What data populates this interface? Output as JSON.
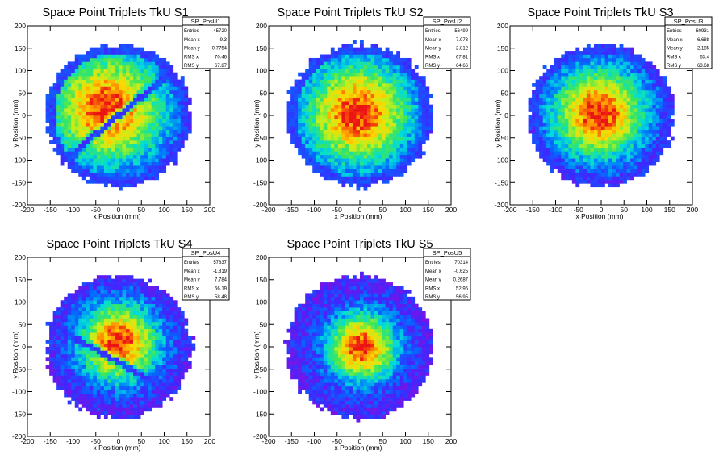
{
  "chart_data": [
    {
      "type": "heatmap",
      "title": "Space Point Triplets TkU S1",
      "xlabel": "x Position (mm)",
      "ylabel": "y Position (mm)",
      "xlim": [
        -200,
        200
      ],
      "ylim": [
        -200,
        200
      ],
      "xticks": [
        -200,
        -150,
        -100,
        -50,
        0,
        50,
        100,
        150,
        200
      ],
      "yticks": [
        -200,
        -150,
        -100,
        -50,
        0,
        50,
        100,
        150,
        200
      ],
      "stats": {
        "name": "SP_PosU1",
        "rows": [
          {
            "label": "Entries",
            "value": "45720"
          },
          {
            "label": "Mean x",
            "value": "-9.3"
          },
          {
            "label": "Mean y",
            "value": "-0.7754"
          },
          {
            "label": "RMS x",
            "value": "70.46"
          },
          {
            "label": "RMS y",
            "value": "67.87"
          }
        ]
      },
      "distribution": {
        "center_x": -25,
        "center_y": 15,
        "spread": 85,
        "radius": 160,
        "gap_band": {
          "angle_deg": 40,
          "offset": 0
        }
      }
    },
    {
      "type": "heatmap",
      "title": "Space Point Triplets TkU S2",
      "xlabel": "x Position (mm)",
      "ylabel": "y Position (mm)",
      "xlim": [
        -200,
        200
      ],
      "ylim": [
        -200,
        200
      ],
      "xticks": [
        -200,
        -150,
        -100,
        -50,
        0,
        50,
        100,
        150,
        200
      ],
      "yticks": [
        -200,
        -150,
        -100,
        -50,
        0,
        50,
        100,
        150,
        200
      ],
      "stats": {
        "name": "SP_PosU2",
        "rows": [
          {
            "label": "Entries",
            "value": "56499"
          },
          {
            "label": "Mean x",
            "value": "-7.073"
          },
          {
            "label": "Mean y",
            "value": "2.812"
          },
          {
            "label": "RMS x",
            "value": "67.81"
          },
          {
            "label": "RMS y",
            "value": "64.66"
          }
        ]
      },
      "distribution": {
        "center_x": -5,
        "center_y": 5,
        "spread": 80,
        "radius": 160,
        "gap_band": null
      }
    },
    {
      "type": "heatmap",
      "title": "Space Point Triplets TkU S3",
      "xlabel": "x Position (mm)",
      "ylabel": "y Position (mm)",
      "xlim": [
        -200,
        200
      ],
      "ylim": [
        -200,
        200
      ],
      "xticks": [
        -200,
        -150,
        -100,
        -50,
        0,
        50,
        100,
        150,
        200
      ],
      "yticks": [
        -200,
        -150,
        -100,
        -50,
        0,
        50,
        100,
        150,
        200
      ],
      "stats": {
        "name": "SP_PosU3",
        "rows": [
          {
            "label": "Entries",
            "value": "60931"
          },
          {
            "label": "Mean x",
            "value": "-6.688"
          },
          {
            "label": "Mean y",
            "value": "2.185"
          },
          {
            "label": "RMS x",
            "value": "63.4"
          },
          {
            "label": "RMS y",
            "value": "63.68"
          }
        ]
      },
      "distribution": {
        "center_x": -5,
        "center_y": 5,
        "spread": 70,
        "radius": 160,
        "gap_band": null
      }
    },
    {
      "type": "heatmap",
      "title": "Space Point Triplets TkU S4",
      "xlabel": "x Position (mm)",
      "ylabel": "y Position (mm)",
      "xlim": [
        -200,
        200
      ],
      "ylim": [
        -200,
        200
      ],
      "xticks": [
        -200,
        -150,
        -100,
        -50,
        0,
        50,
        100,
        150,
        200
      ],
      "yticks": [
        -200,
        -150,
        -100,
        -50,
        0,
        50,
        100,
        150,
        200
      ],
      "stats": {
        "name": "SP_PosU4",
        "rows": [
          {
            "label": "Entries",
            "value": "57837"
          },
          {
            "label": "Mean x",
            "value": "-1.819"
          },
          {
            "label": "Mean y",
            "value": "7.784"
          },
          {
            "label": "RMS x",
            "value": "56.19"
          },
          {
            "label": "RMS y",
            "value": "58.48"
          }
        ]
      },
      "distribution": {
        "center_x": 0,
        "center_y": 10,
        "spread": 60,
        "radius": 160,
        "gap_band": {
          "angle_deg": -30,
          "offset": -30
        }
      }
    },
    {
      "type": "heatmap",
      "title": "Space Point Triplets TkU S5",
      "xlabel": "x Position (mm)",
      "ylabel": "y Position (mm)",
      "xlim": [
        -200,
        200
      ],
      "ylim": [
        -200,
        200
      ],
      "xticks": [
        -200,
        -150,
        -100,
        -50,
        0,
        50,
        100,
        150,
        200
      ],
      "yticks": [
        -200,
        -150,
        -100,
        -50,
        0,
        50,
        100,
        150,
        200
      ],
      "stats": {
        "name": "SP_PosU5",
        "rows": [
          {
            "label": "Entries",
            "value": "70314"
          },
          {
            "label": "Mean x",
            "value": "-0.625"
          },
          {
            "label": "Mean y",
            "value": "0.2687"
          },
          {
            "label": "RMS x",
            "value": "52.95"
          },
          {
            "label": "RMS y",
            "value": "56.95"
          }
        ]
      },
      "distribution": {
        "center_x": 5,
        "center_y": 0,
        "spread": 52,
        "radius": 160,
        "gap_band": null
      }
    }
  ]
}
